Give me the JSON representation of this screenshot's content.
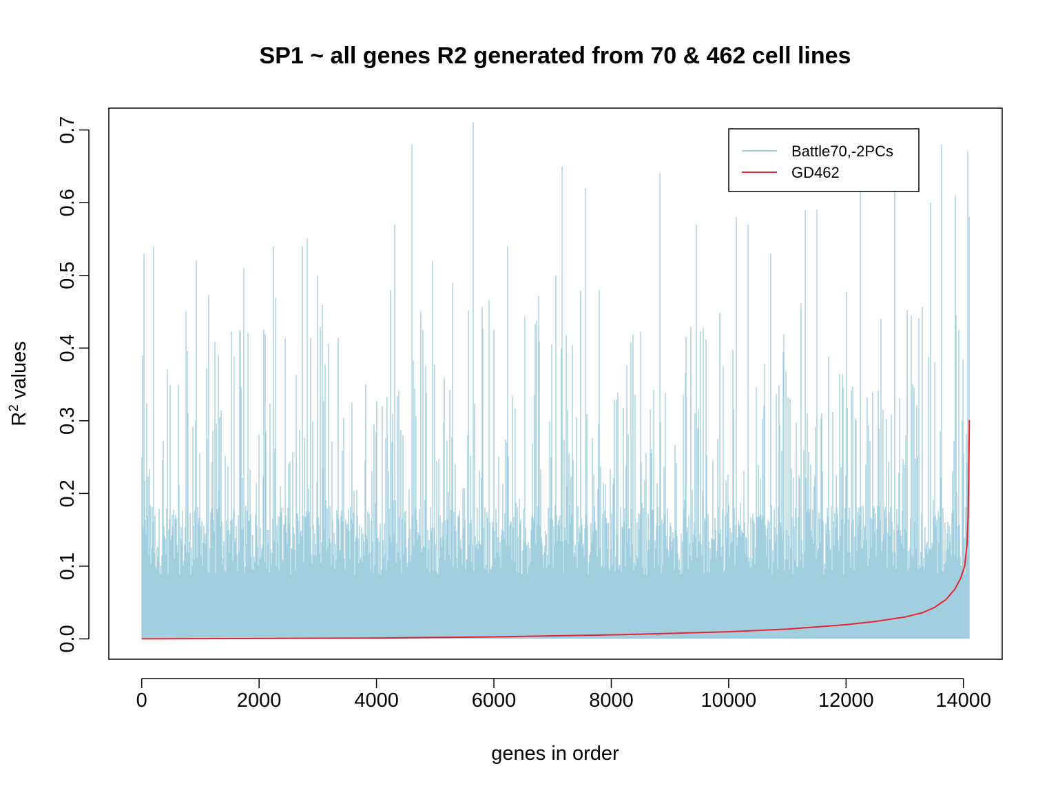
{
  "chart_data": {
    "type": "line",
    "title": "SP1 ~ all genes R2 generated from 70 & 462 cell lines",
    "xlabel": "genes in order",
    "ylabel_main": "R",
    "ylabel_sup": "2",
    "ylabel_rest": " values",
    "xlim": [
      -560,
      14660
    ],
    "ylim": [
      -0.028,
      0.73
    ],
    "x_ticks": [
      0,
      2000,
      4000,
      6000,
      8000,
      10000,
      12000,
      14000
    ],
    "x_tick_labels": [
      "0",
      "2000",
      "4000",
      "6000",
      "8000",
      "10000",
      "12000",
      "14000"
    ],
    "y_ticks": [
      0.0,
      0.1,
      0.2,
      0.3,
      0.4,
      0.5,
      0.6,
      0.7
    ],
    "y_tick_labels": [
      "0.0",
      "0.1",
      "0.2",
      "0.3",
      "0.4",
      "0.5",
      "0.6",
      "0.7"
    ],
    "grid": false,
    "legend_position": "top-right",
    "n_genes": 14100,
    "series": [
      {
        "name": "Battle70,-2PCs",
        "color": "#a2cfe0",
        "style": "dense-noisy-line",
        "typical_max": 0.16,
        "x_peaks": [
          0,
          40,
          200,
          750,
          930,
          1310,
          1740,
          2240,
          2740,
          2820,
          3000,
          4240,
          4310,
          4600,
          4950,
          5300,
          5650,
          6230,
          7050,
          7160,
          7560,
          7800,
          8830,
          9450,
          10130,
          10330,
          10720,
          11300,
          11500,
          12240,
          12830,
          13440,
          13630,
          13860,
          14070,
          14100
        ],
        "y_peaks": [
          0.25,
          0.53,
          0.54,
          0.45,
          0.52,
          0.39,
          0.51,
          0.54,
          0.54,
          0.55,
          0.5,
          0.48,
          0.57,
          0.68,
          0.52,
          0.49,
          0.71,
          0.54,
          0.5,
          0.65,
          0.62,
          0.48,
          0.64,
          0.57,
          0.58,
          0.57,
          0.53,
          0.59,
          0.59,
          0.66,
          0.66,
          0.6,
          0.68,
          0.61,
          0.67,
          0.58
        ]
      },
      {
        "name": "GD462",
        "color": "#e8232c",
        "style": "sorted-curve",
        "x": [
          0,
          2000,
          4000,
          6000,
          8000,
          9000,
          10000,
          11000,
          12000,
          12500,
          13000,
          13300,
          13500,
          13700,
          13850,
          13950,
          14020,
          14060,
          14080,
          14090,
          14100
        ],
        "y": [
          0.0,
          0.0005,
          0.0012,
          0.0028,
          0.0055,
          0.0075,
          0.0098,
          0.0135,
          0.0195,
          0.024,
          0.03,
          0.036,
          0.043,
          0.054,
          0.068,
          0.083,
          0.1,
          0.13,
          0.17,
          0.22,
          0.301
        ]
      }
    ]
  }
}
